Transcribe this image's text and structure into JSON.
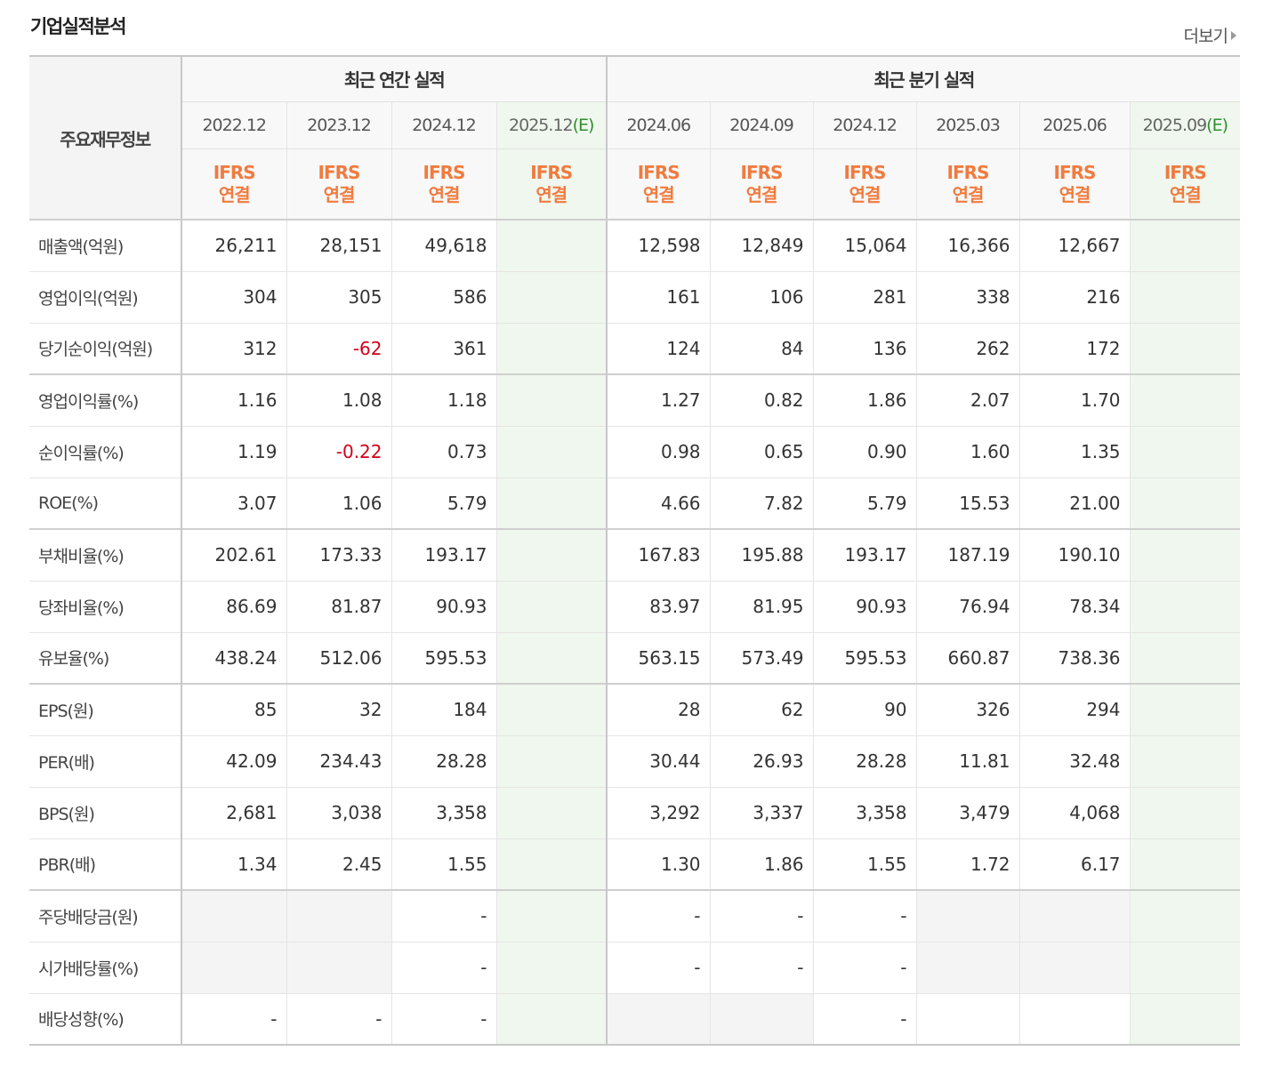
{
  "header": {
    "title": "기업실적분석",
    "more_label": "더보기"
  },
  "table": {
    "corner_label": "주요재무정보",
    "groups": [
      "최근 연간 실적",
      "최근 분기 실적"
    ],
    "periods": [
      "2022.12",
      "2023.12",
      "2024.12",
      "2025.12",
      "2024.06",
      "2024.09",
      "2024.12",
      "2025.03",
      "2025.06",
      "2025.09"
    ],
    "estimate_mark": "(E)",
    "basis_line1": "IFRS",
    "basis_line2": "연결",
    "rows": [
      {
        "label": "매출액(억원)",
        "values": [
          "26,211",
          "28,151",
          "49,618",
          "",
          "12,598",
          "12,849",
          "15,064",
          "16,366",
          "12,667",
          ""
        ]
      },
      {
        "label": "영업이익(억원)",
        "values": [
          "304",
          "305",
          "586",
          "",
          "161",
          "106",
          "281",
          "338",
          "216",
          ""
        ]
      },
      {
        "label": "당기순이익(억원)",
        "values": [
          "312",
          "-62",
          "361",
          "",
          "124",
          "84",
          "136",
          "262",
          "172",
          ""
        ]
      },
      {
        "label": "영업이익률(%)",
        "values": [
          "1.16",
          "1.08",
          "1.18",
          "",
          "1.27",
          "0.82",
          "1.86",
          "2.07",
          "1.70",
          ""
        ]
      },
      {
        "label": "순이익률(%)",
        "values": [
          "1.19",
          "-0.22",
          "0.73",
          "",
          "0.98",
          "0.65",
          "0.90",
          "1.60",
          "1.35",
          ""
        ]
      },
      {
        "label": "ROE(%)",
        "values": [
          "3.07",
          "1.06",
          "5.79",
          "",
          "4.66",
          "7.82",
          "5.79",
          "15.53",
          "21.00",
          ""
        ]
      },
      {
        "label": "부채비율(%)",
        "values": [
          "202.61",
          "173.33",
          "193.17",
          "",
          "167.83",
          "195.88",
          "193.17",
          "187.19",
          "190.10",
          ""
        ]
      },
      {
        "label": "당좌비율(%)",
        "values": [
          "86.69",
          "81.87",
          "90.93",
          "",
          "83.97",
          "81.95",
          "90.93",
          "76.94",
          "78.34",
          ""
        ]
      },
      {
        "label": "유보율(%)",
        "values": [
          "438.24",
          "512.06",
          "595.53",
          "",
          "563.15",
          "573.49",
          "595.53",
          "660.87",
          "738.36",
          ""
        ]
      },
      {
        "label": "EPS(원)",
        "values": [
          "85",
          "32",
          "184",
          "",
          "28",
          "62",
          "90",
          "326",
          "294",
          ""
        ]
      },
      {
        "label": "PER(배)",
        "values": [
          "42.09",
          "234.43",
          "28.28",
          "",
          "30.44",
          "26.93",
          "28.28",
          "11.81",
          "32.48",
          ""
        ]
      },
      {
        "label": "BPS(원)",
        "values": [
          "2,681",
          "3,038",
          "3,358",
          "",
          "3,292",
          "3,337",
          "3,358",
          "3,479",
          "4,068",
          ""
        ]
      },
      {
        "label": "PBR(배)",
        "values": [
          "1.34",
          "2.45",
          "1.55",
          "",
          "1.30",
          "1.86",
          "1.55",
          "1.72",
          "6.17",
          ""
        ]
      },
      {
        "label": "주당배당금(원)",
        "values": [
          "",
          "",
          "-",
          "",
          "-",
          "-",
          "-",
          "",
          "",
          ""
        ]
      },
      {
        "label": "시가배당률(%)",
        "values": [
          "",
          "",
          "-",
          "",
          "-",
          "-",
          "-",
          "",
          "",
          ""
        ]
      },
      {
        "label": "배당성향(%)",
        "values": [
          "-",
          "-",
          "-",
          "",
          "",
          "",
          "-",
          "",
          "",
          ""
        ]
      }
    ]
  },
  "colors": {
    "ifrs_orange": "#f07b3f",
    "negative_red": "#d0021b",
    "estimate_green": "#2f8f2f",
    "estimate_bg": "#f0f7ee"
  }
}
